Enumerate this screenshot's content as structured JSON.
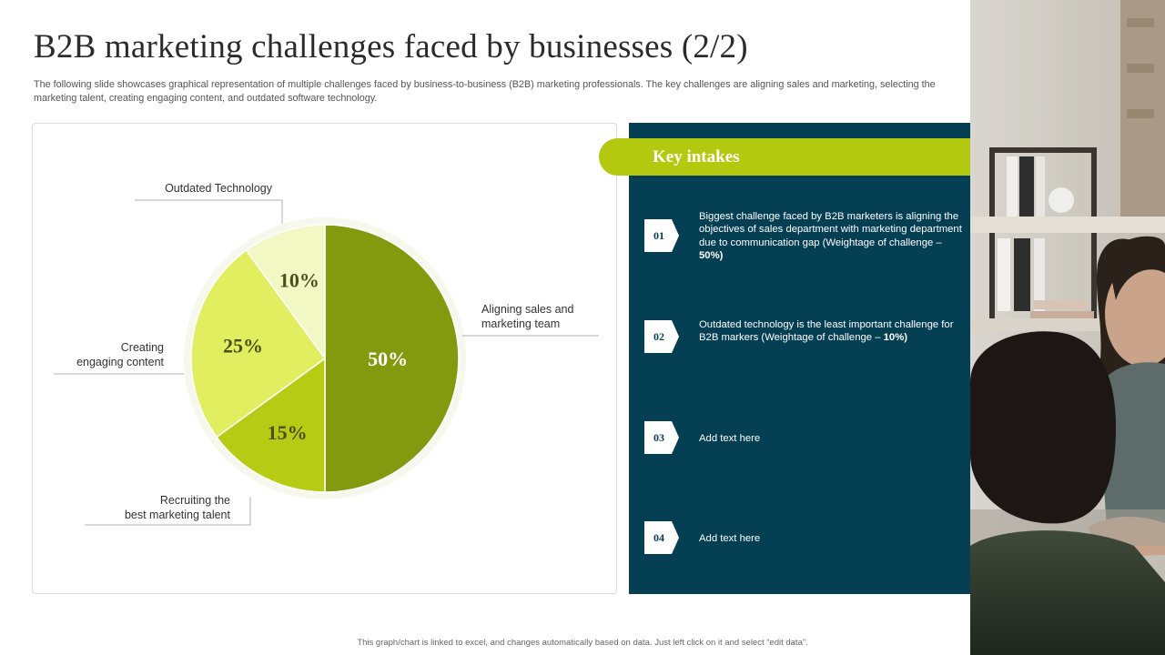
{
  "slide": {
    "title": "B2B marketing challenges faced by businesses (2/2)",
    "subtitle": "The following slide showcases graphical representation of multiple challenges faced by business-to-business (B2B) marketing professionals. The key challenges are aligning sales and marketing, selecting the marketing talent, creating engaging content, and outdated software technology.",
    "footer": "This graph/chart is linked to excel, and changes automatically based on data. Just left click on it and select “edit data”."
  },
  "key_intakes": {
    "title": "Key intakes",
    "items": [
      {
        "number": "01",
        "text": "Biggest challenge faced by B2B marketers is aligning the objectives of sales department with marketing department due to communication gap (Weightage of challenge – ",
        "emphasis": "50%)"
      },
      {
        "number": "02",
        "text": "Outdated technology is the least important challenge for B2B markers (Weightage of challenge – ",
        "emphasis": "10%)"
      },
      {
        "number": "03",
        "text": "Add text here",
        "emphasis": ""
      },
      {
        "number": "04",
        "text": "Add text here",
        "emphasis": ""
      }
    ]
  },
  "chart_data": {
    "type": "pie",
    "title": "",
    "slices": [
      {
        "label": "Aligning sales and marketing team",
        "label_lines": [
          "Aligning sales and",
          "marketing team"
        ],
        "value": 50,
        "value_label": "50%",
        "color": "#849a0e"
      },
      {
        "label": "Recruiting the best marketing talent",
        "label_lines": [
          "Recruiting the",
          "best marketing talent"
        ],
        "value": 15,
        "value_label": "15%",
        "color": "#b6cc14"
      },
      {
        "label": "Creating engaging content",
        "label_lines": [
          "Creating",
          "engaging content"
        ],
        "value": 25,
        "value_label": "25%",
        "color": "#e0ee5f"
      },
      {
        "label": "Outdated Technology",
        "label_lines": [
          "Outdated Technology"
        ],
        "value": 10,
        "value_label": "10%",
        "color": "#f2f8c4"
      }
    ]
  },
  "colors": {
    "accent": "#b3c90f",
    "panel": "#053f53"
  }
}
